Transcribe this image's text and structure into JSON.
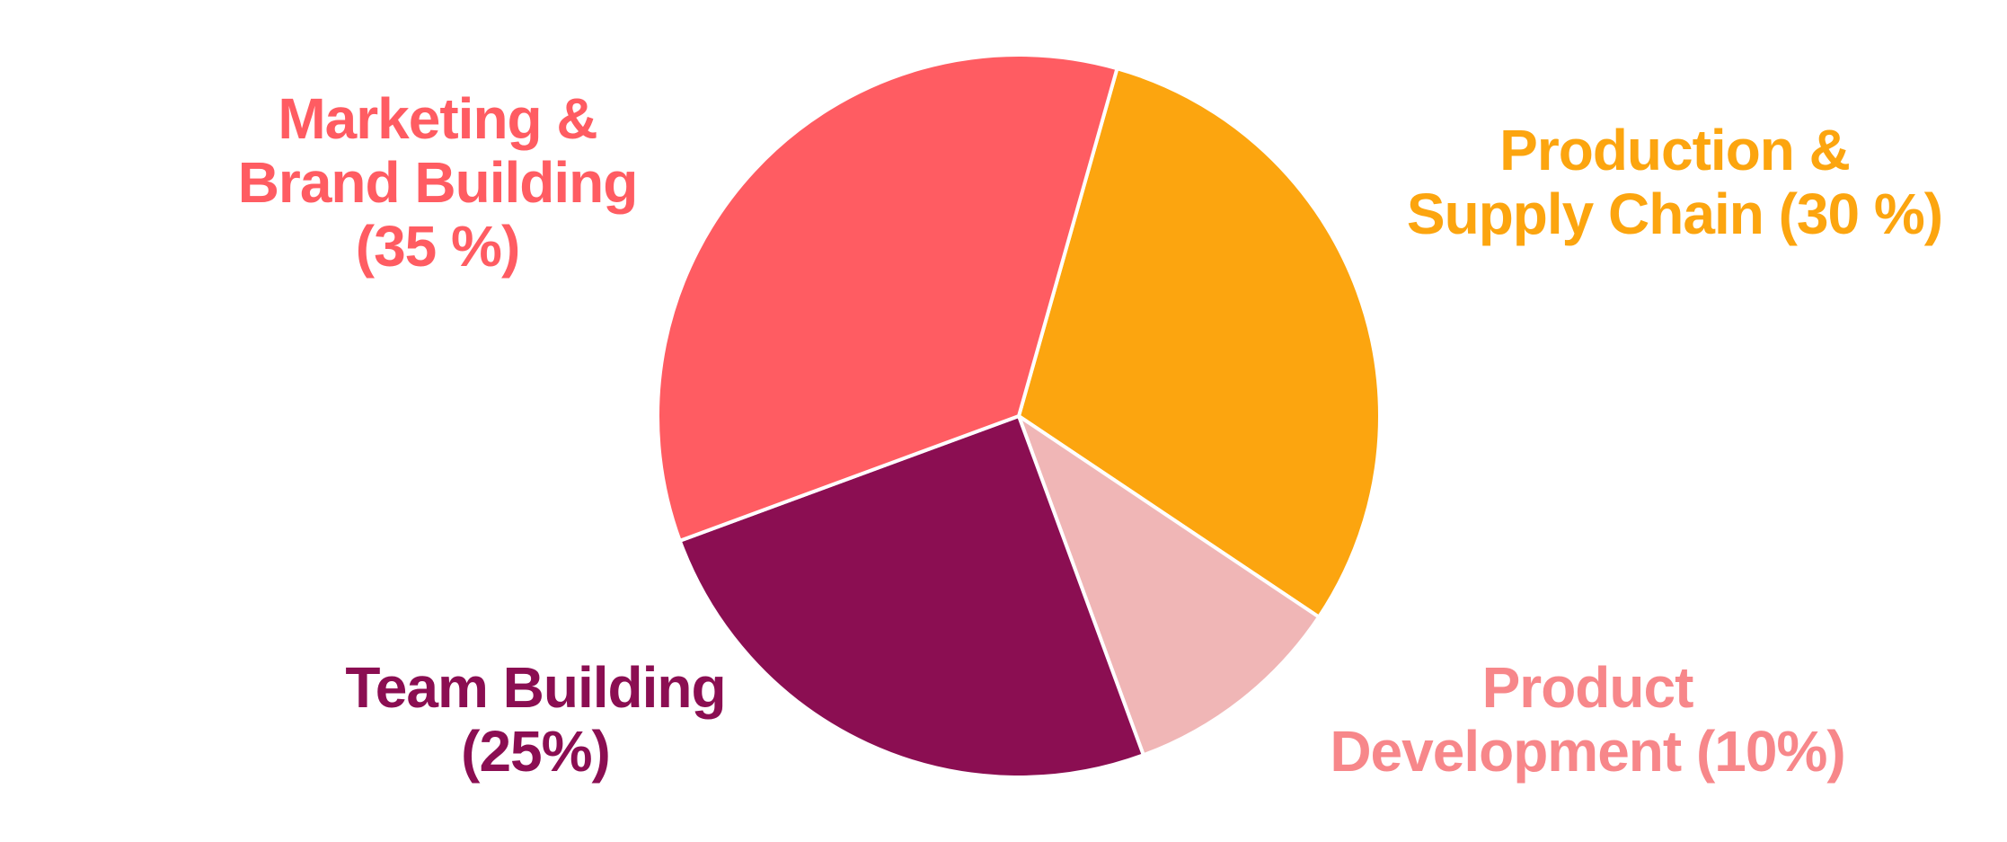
{
  "chart_data": {
    "type": "pie",
    "categories": [
      [
        "Production &",
        "Supply Chain (30 %)"
      ],
      [
        "Product",
        "Development (10%)"
      ],
      [
        "Team Building",
        "(25%)"
      ],
      [
        "Marketing &",
        "Brand Building",
        "(35 %)"
      ]
    ],
    "values": [
      30,
      10,
      25,
      35
    ],
    "colors": [
      "#fca50f",
      "#f0b6b6",
      "#8b0e52",
      "#ff5c62"
    ],
    "label_colors": [
      "#fca50f",
      "#f7878a",
      "#8b0e52",
      "#ff5c62"
    ]
  }
}
